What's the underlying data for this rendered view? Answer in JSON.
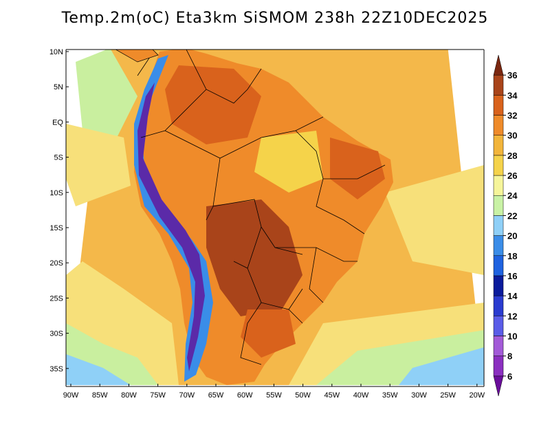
{
  "title": "Temp.2m(oC) Eta3km SiSMOM 238h 22Z10DEC2025",
  "lat_labels": [
    "10N",
    "5N",
    "EQ",
    "5S",
    "10S",
    "15S",
    "20S",
    "25S",
    "30S",
    "35S"
  ],
  "lon_labels": [
    "90W",
    "85W",
    "80W",
    "75W",
    "70W",
    "65W",
    "60W",
    "55W",
    "50W",
    "45W",
    "40W",
    "35W",
    "30W",
    "25W",
    "20W"
  ],
  "colorbar": {
    "labels": [
      "6",
      "8",
      "10",
      "12",
      "14",
      "16",
      "18",
      "20",
      "22",
      "24",
      "26",
      "28",
      "30",
      "32",
      "34",
      "36"
    ],
    "colors": [
      "#6a0d9b",
      "#8b2fc0",
      "#a35ad8",
      "#5a5ce8",
      "#2a3bd0",
      "#0a1b9c",
      "#1e62e0",
      "#3a8de8",
      "#8fd0f7",
      "#c9f2a5",
      "#f6f59a",
      "#f5d34a",
      "#f2b53a",
      "#ef8b2a",
      "#d9621c",
      "#a9441a",
      "#7a2710"
    ]
  },
  "field_colors": {
    "ocean_warm": "#f4b84a",
    "ocean_mild": "#f7e07a",
    "ocean_cool": "#c9ef9f",
    "ocean_cold": "#8fd0f7",
    "land_hot": "#d9621c",
    "land_very_hot": "#a9441a",
    "andes_cold": "#3a8de8",
    "andes_very_cold": "#5b2aa8"
  }
}
